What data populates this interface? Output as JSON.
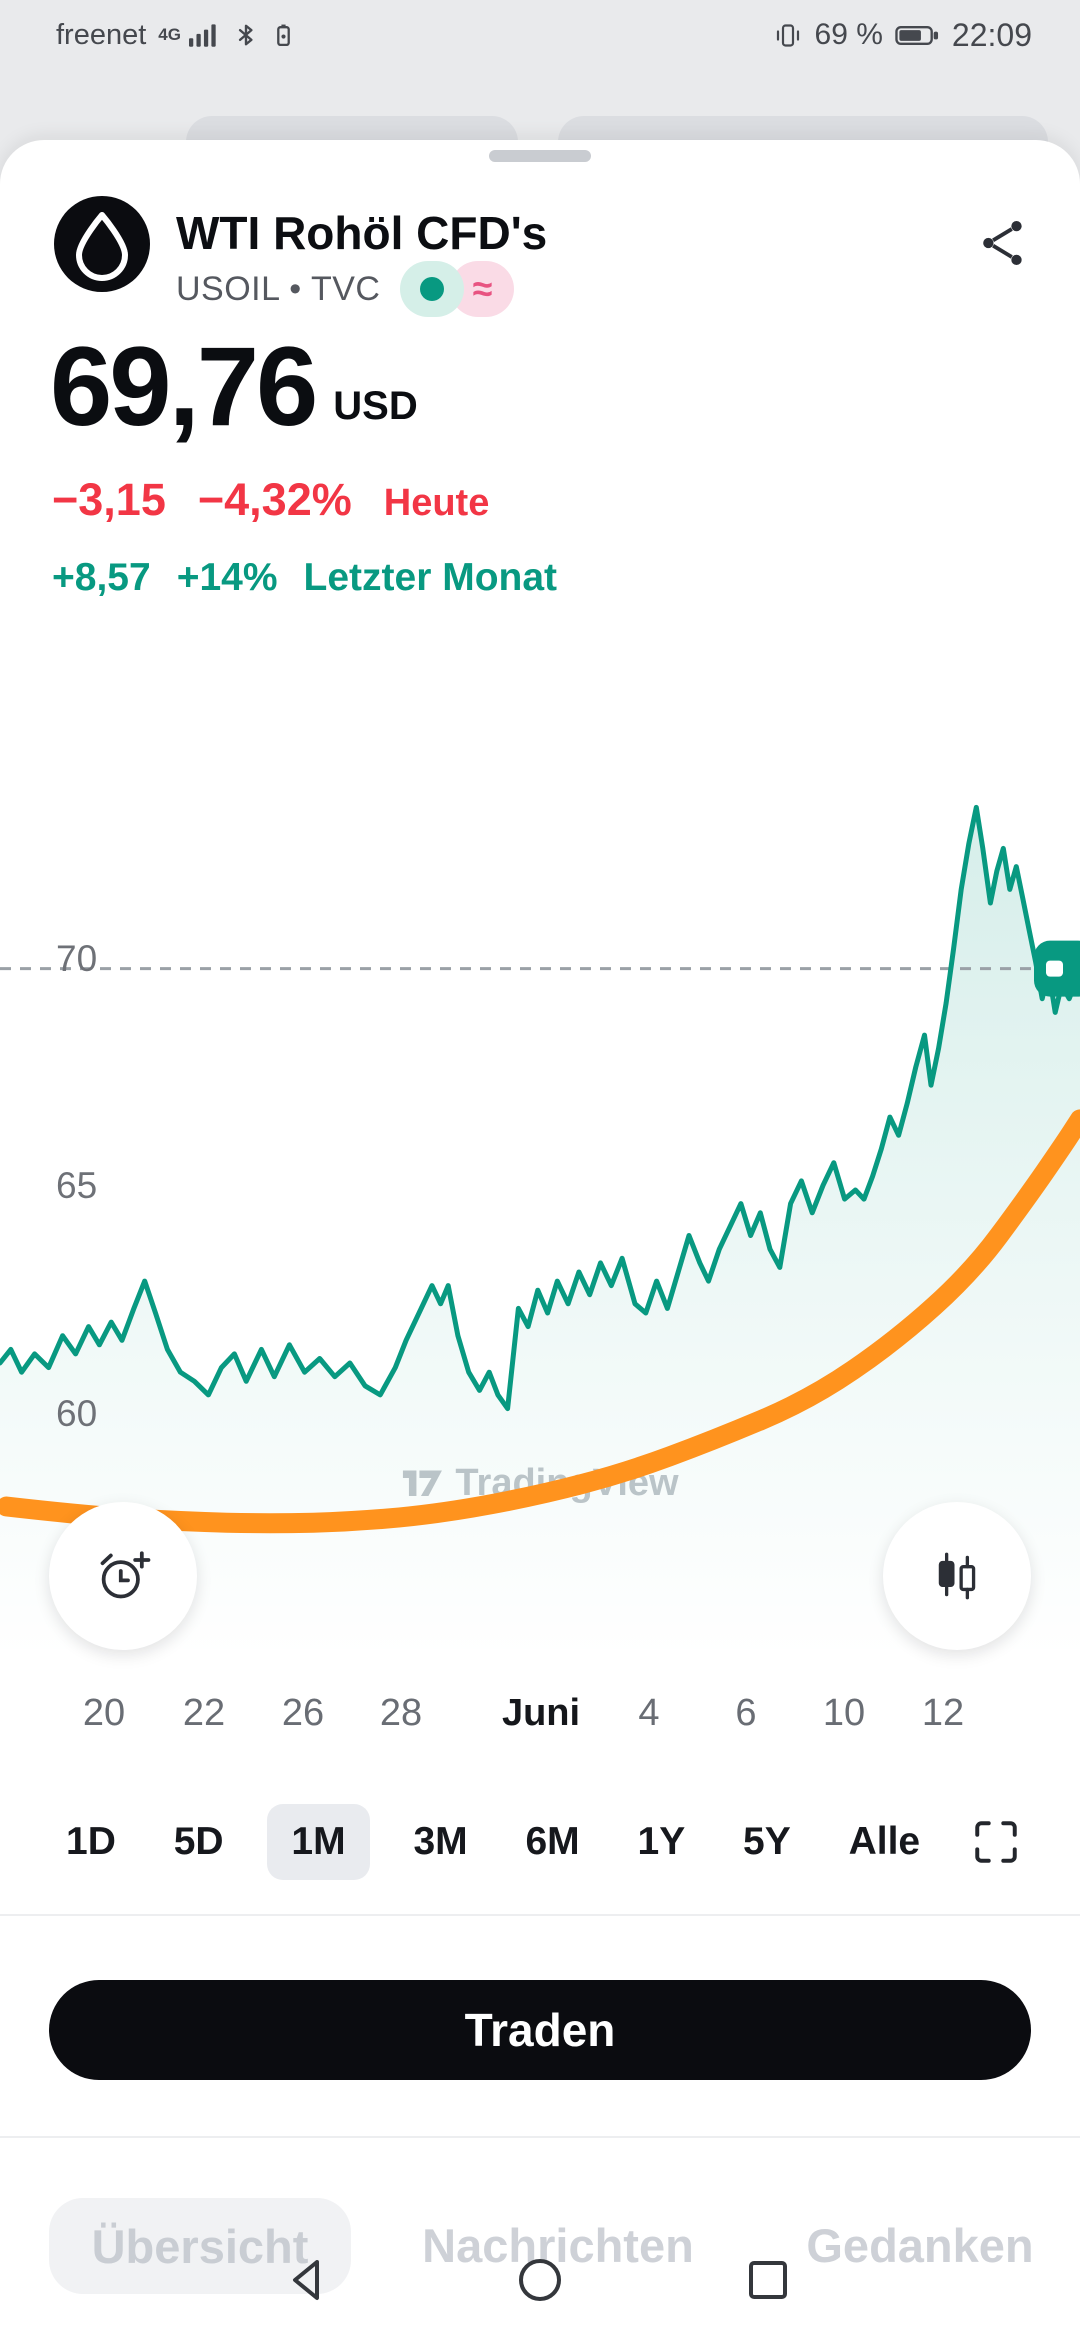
{
  "status_bar": {
    "carrier": "freenet",
    "network": "4G",
    "battery_percent": "69 %",
    "time": "22:09"
  },
  "header": {
    "title": "WTI Rohöl CFD's",
    "subtitle": "USOIL • TVC",
    "badge_approx": "≈"
  },
  "price": {
    "value": "69,76",
    "currency": "USD"
  },
  "day": {
    "change": "−3,15",
    "percent": "−4,32%",
    "label": "Heute"
  },
  "month": {
    "change": "+8,57",
    "percent": "+14%",
    "label": "Letzter Monat"
  },
  "chart": {
    "watermark": "TradingView",
    "y_labels": [
      "70",
      "65",
      "60"
    ],
    "x_labels": [
      "20",
      "22",
      "26",
      "28",
      "Juni",
      "4",
      "6",
      "10",
      "12"
    ]
  },
  "chart_data": {
    "type": "area",
    "title": "WTI Rohöl CFD's — 1M",
    "symbol": "USOIL",
    "ylabel": "USD",
    "ylim": [
      54.58,
      74.78
    ],
    "y_ticks": [
      70,
      65,
      60
    ],
    "x_tick_labels": [
      "20",
      "22",
      "26",
      "28",
      "Juni",
      "4",
      "6",
      "10",
      "12"
    ],
    "price_line": 69.76,
    "line_color": "#089981",
    "annotation_color": "#ff931e",
    "points": [
      [
        0,
        61.1
      ],
      [
        0.01,
        61.4
      ],
      [
        0.02,
        60.9
      ],
      [
        0.032,
        61.3
      ],
      [
        0.045,
        61
      ],
      [
        0.058,
        61.7
      ],
      [
        0.07,
        61.3
      ],
      [
        0.082,
        61.9
      ],
      [
        0.092,
        61.5
      ],
      [
        0.103,
        62
      ],
      [
        0.113,
        61.6
      ],
      [
        0.124,
        62.3
      ],
      [
        0.134,
        62.9
      ],
      [
        0.144,
        62.2
      ],
      [
        0.155,
        61.4
      ],
      [
        0.167,
        60.9
      ],
      [
        0.18,
        60.7
      ],
      [
        0.193,
        60.4
      ],
      [
        0.205,
        61
      ],
      [
        0.217,
        61.3
      ],
      [
        0.228,
        60.7
      ],
      [
        0.242,
        61.4
      ],
      [
        0.254,
        60.8
      ],
      [
        0.268,
        61.5
      ],
      [
        0.282,
        60.9
      ],
      [
        0.296,
        61.2
      ],
      [
        0.31,
        60.8
      ],
      [
        0.324,
        61.1
      ],
      [
        0.338,
        60.6
      ],
      [
        0.352,
        60.4
      ],
      [
        0.366,
        61
      ],
      [
        0.376,
        61.6
      ],
      [
        0.39,
        62.3
      ],
      [
        0.4,
        62.8
      ],
      [
        0.408,
        62.4
      ],
      [
        0.415,
        62.8
      ],
      [
        0.424,
        61.7
      ],
      [
        0.434,
        60.9
      ],
      [
        0.444,
        60.5
      ],
      [
        0.453,
        60.9
      ],
      [
        0.461,
        60.4
      ],
      [
        0.47,
        60.1
      ],
      [
        0.48,
        62.3
      ],
      [
        0.489,
        61.9
      ],
      [
        0.498,
        62.7
      ],
      [
        0.507,
        62.2
      ],
      [
        0.516,
        62.9
      ],
      [
        0.526,
        62.4
      ],
      [
        0.536,
        63.1
      ],
      [
        0.546,
        62.6
      ],
      [
        0.556,
        63.3
      ],
      [
        0.566,
        62.8
      ],
      [
        0.576,
        63.4
      ],
      [
        0.588,
        62.4
      ],
      [
        0.598,
        62.2
      ],
      [
        0.608,
        62.9
      ],
      [
        0.618,
        62.3
      ],
      [
        0.628,
        63.1
      ],
      [
        0.638,
        63.9
      ],
      [
        0.648,
        63.3
      ],
      [
        0.656,
        62.9
      ],
      [
        0.666,
        63.6
      ],
      [
        0.676,
        64.1
      ],
      [
        0.686,
        64.6
      ],
      [
        0.695,
        63.9
      ],
      [
        0.704,
        64.4
      ],
      [
        0.713,
        63.6
      ],
      [
        0.722,
        63.2
      ],
      [
        0.732,
        64.6
      ],
      [
        0.742,
        65.1
      ],
      [
        0.752,
        64.4
      ],
      [
        0.762,
        65
      ],
      [
        0.772,
        65.5
      ],
      [
        0.782,
        64.7
      ],
      [
        0.792,
        64.9
      ],
      [
        0.8,
        64.7
      ],
      [
        0.808,
        65.2
      ],
      [
        0.816,
        65.8
      ],
      [
        0.824,
        66.5
      ],
      [
        0.832,
        66.1
      ],
      [
        0.84,
        66.8
      ],
      [
        0.848,
        67.6
      ],
      [
        0.856,
        68.3
      ],
      [
        0.862,
        67.2
      ],
      [
        0.869,
        68
      ],
      [
        0.876,
        69
      ],
      [
        0.883,
        70.2
      ],
      [
        0.89,
        71.5
      ],
      [
        0.897,
        72.5
      ],
      [
        0.904,
        73.3
      ],
      [
        0.91,
        72.4
      ],
      [
        0.917,
        71.2
      ],
      [
        0.923,
        71.9
      ],
      [
        0.929,
        72.4
      ],
      [
        0.935,
        71.5
      ],
      [
        0.941,
        72
      ],
      [
        0.947,
        71.3
      ],
      [
        0.953,
        70.6
      ],
      [
        0.959,
        69.9
      ],
      [
        0.965,
        69.1
      ],
      [
        0.971,
        69.7
      ],
      [
        0.977,
        68.8
      ],
      [
        0.983,
        69.4
      ],
      [
        0.99,
        69.1
      ],
      [
        0.995,
        69.4
      ],
      [
        1,
        69.76
      ]
    ],
    "annotation": [
      [
        0.006,
        57.95
      ],
      [
        0.08,
        57.75
      ],
      [
        0.17,
        57.62
      ],
      [
        0.25,
        57.57
      ],
      [
        0.33,
        57.62
      ],
      [
        0.41,
        57.8
      ],
      [
        0.5,
        58.2
      ],
      [
        0.58,
        58.7
      ],
      [
        0.66,
        59.4
      ],
      [
        0.75,
        60.3
      ],
      [
        0.83,
        61.6
      ],
      [
        0.9,
        63.1
      ],
      [
        0.95,
        64.7
      ],
      [
        0.985,
        65.9
      ],
      [
        1,
        66.45
      ]
    ]
  },
  "ranges": {
    "items": [
      "1D",
      "5D",
      "1M",
      "3M",
      "6M",
      "1Y",
      "5Y",
      "Alle"
    ],
    "active": "1M"
  },
  "trade": {
    "label": "Traden"
  },
  "tabs": {
    "items": [
      "Übersicht",
      "Nachrichten",
      "Gedanken"
    ],
    "active": "Übersicht"
  }
}
